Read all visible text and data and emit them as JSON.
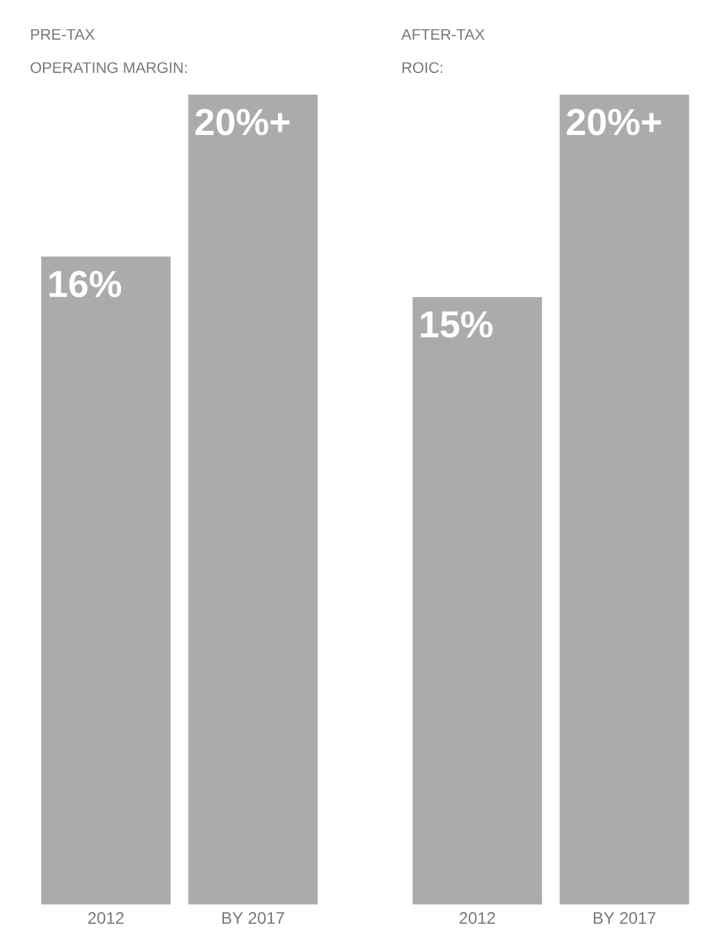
{
  "chart_data": [
    {
      "type": "bar",
      "title": "PRE-TAX",
      "subtitle": "OPERATING MARGIN:",
      "categories": [
        "2012",
        "BY 2017"
      ],
      "values": [
        16,
        20
      ],
      "value_labels": [
        "16%",
        "20%+"
      ],
      "color": "#ababab"
    },
    {
      "type": "bar",
      "title": "AFTER-TAX",
      "subtitle": "ROIC:",
      "categories": [
        "2012",
        "BY 2017"
      ],
      "values": [
        15,
        20
      ],
      "value_labels": [
        "15%",
        "20%+"
      ],
      "color": "#ababab"
    }
  ]
}
